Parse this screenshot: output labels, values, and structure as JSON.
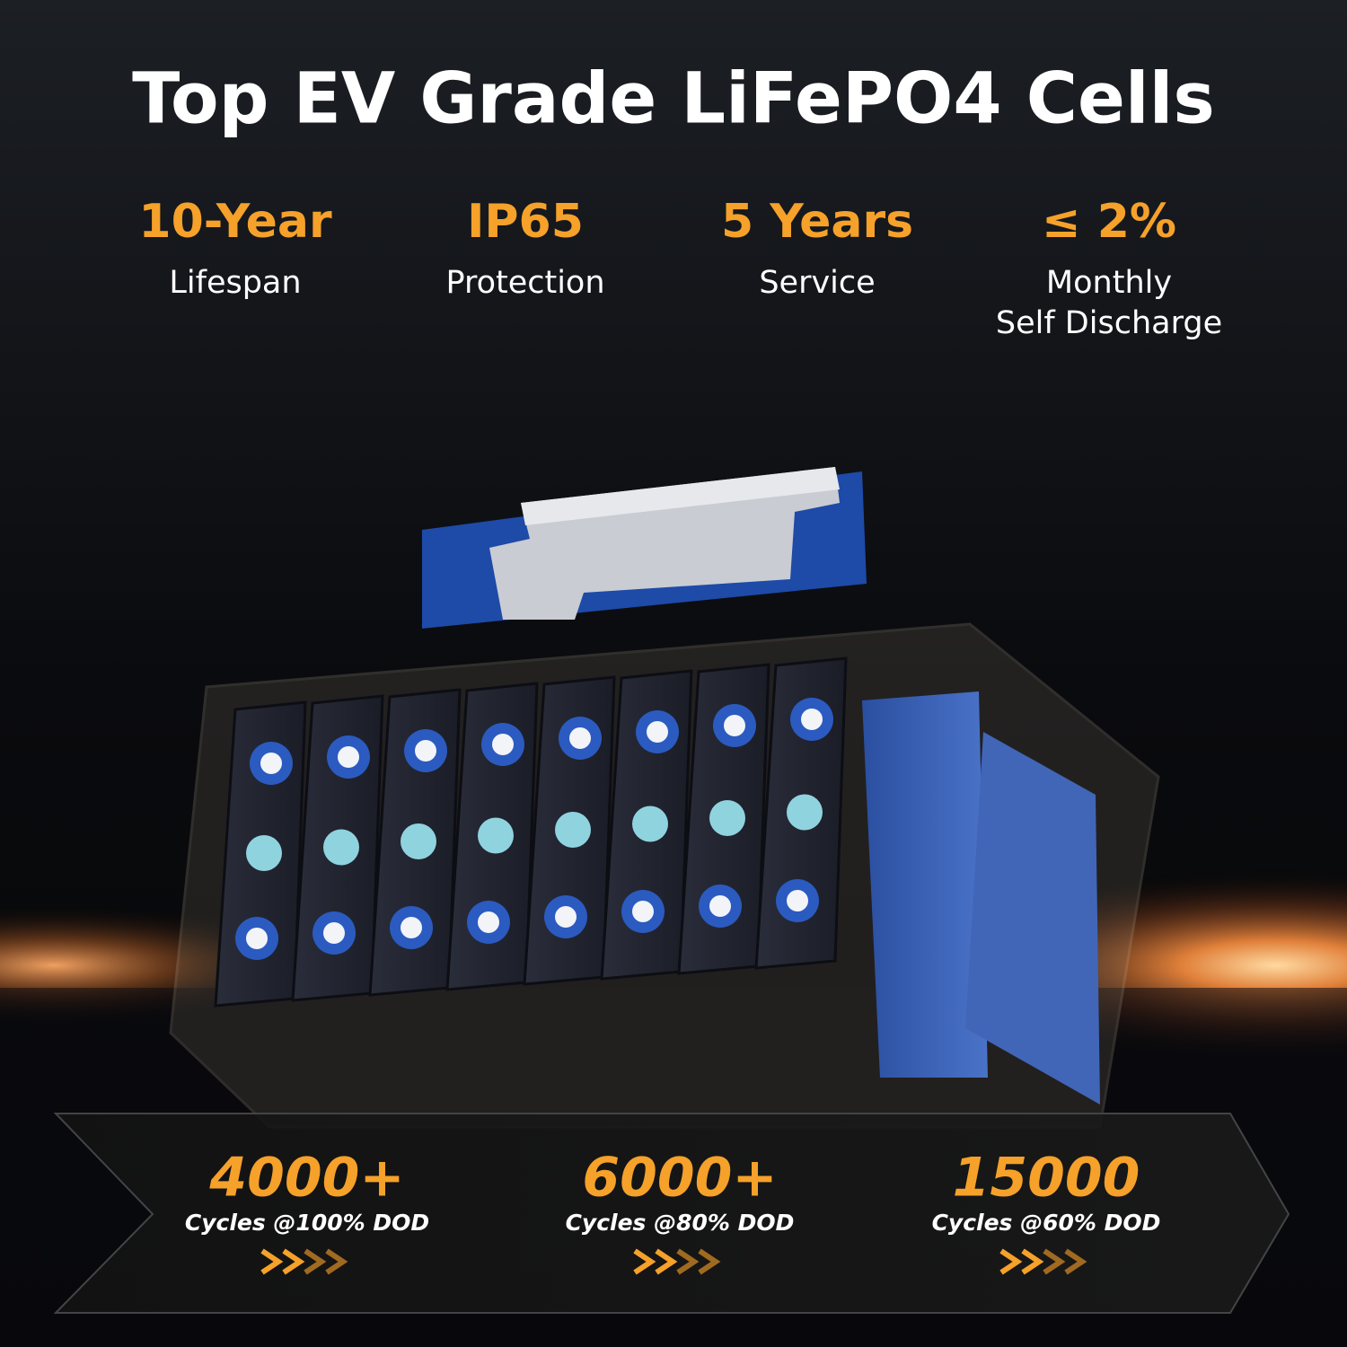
{
  "header": {
    "title": "Top EV Grade LiFePO4 Cells"
  },
  "features": [
    {
      "value": "10-Year",
      "lines": [
        "Lifespan"
      ]
    },
    {
      "value": "IP65",
      "lines": [
        "Protection"
      ]
    },
    {
      "value": "5 Years",
      "lines": [
        "Service"
      ]
    },
    {
      "value": "≤ 2%",
      "lines": [
        "Monthly",
        "Self Discharge"
      ]
    }
  ],
  "cycles": [
    {
      "value": "4000+",
      "label": "Cycles @100% DOD"
    },
    {
      "value": "6000+",
      "label": "Cycles @80% DOD"
    },
    {
      "value": "15000",
      "label": "Cycles @60% DOD"
    }
  ]
}
